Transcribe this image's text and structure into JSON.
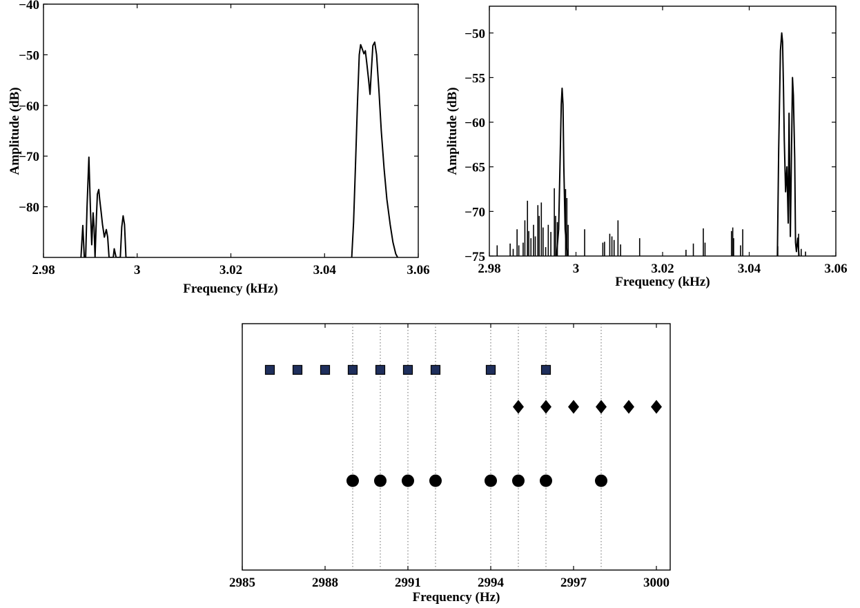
{
  "chart_data": [
    {
      "type": "line",
      "xlabel": "Frequency (kHz)",
      "ylabel": "Amplitude (dB)",
      "xlim": [
        2.98,
        3.06
      ],
      "ylim": [
        -90,
        -40
      ],
      "xticks": [
        2.98,
        3.0,
        3.02,
        3.04,
        3.06
      ],
      "xtick_labels": [
        "2.98",
        "3",
        "3.02",
        "3.04",
        "3.06"
      ],
      "yticks": [
        -40,
        -50,
        -60,
        -70,
        -80
      ],
      "ytick_labels": [
        "−40",
        "−50",
        "−60",
        "−70",
        "−80"
      ],
      "grid": false,
      "series": [
        {
          "x": [
            2.988,
            2.9884,
            2.9887,
            2.989,
            2.9893,
            2.9897,
            2.99,
            2.9903,
            2.9906,
            2.9908,
            2.991,
            2.9913,
            2.9915,
            2.9918,
            2.992,
            2.9923,
            2.9926,
            2.993,
            2.9934,
            2.9937,
            2.994,
            2.9943,
            2.9946,
            2.9949,
            2.9951,
            2.9955,
            2.9958,
            2.9961,
            2.9964,
            2.9967,
            2.997,
            2.9973,
            2.9976,
            2.9978,
            2.9981,
            2.9984,
            2.9987,
            2.999,
            2.9995
          ],
          "y": [
            -90,
            -83.7,
            -90,
            -90,
            -80,
            -70.2,
            -80,
            -87.5,
            -81.2,
            -84,
            -90,
            -82,
            -77.5,
            -76.6,
            -78.5,
            -81,
            -83.5,
            -86,
            -84.5,
            -86,
            -90,
            -90,
            -90,
            -90,
            -88.3,
            -90,
            -90,
            -90,
            -90,
            -84,
            -81.8,
            -83.5,
            -90,
            -90,
            -90,
            -90,
            -90,
            -90,
            -90
          ]
        },
        {
          "x": [
            3.0458,
            3.0462,
            3.0466,
            3.047,
            3.0474,
            3.0477,
            3.048,
            3.0484,
            3.0487,
            3.049,
            3.0494,
            3.0497,
            3.05,
            3.0503,
            3.0507,
            3.0511,
            3.0516,
            3.0521,
            3.0527,
            3.0533,
            3.054,
            3.0546,
            3.0552,
            3.0556
          ],
          "y": [
            -90,
            -83,
            -72,
            -60,
            -50,
            -48,
            -48.7,
            -49.8,
            -49.2,
            -51.5,
            -55,
            -57.8,
            -53,
            -48.2,
            -47.5,
            -50,
            -57,
            -65,
            -72.5,
            -78.5,
            -83.5,
            -87,
            -89.3,
            -90
          ]
        }
      ]
    },
    {
      "type": "line",
      "xlabel": "Frequency (kHz)",
      "ylabel": "Amplitude (dB)",
      "xlim": [
        2.98,
        3.06
      ],
      "ylim": [
        -75,
        -47
      ],
      "xticks": [
        2.98,
        3.0,
        3.02,
        3.04,
        3.06
      ],
      "xtick_labels": [
        "2.98",
        "3",
        "3.02",
        "3.04",
        "3.06"
      ],
      "yticks": [
        -50,
        -55,
        -60,
        -65,
        -70,
        -75
      ],
      "ytick_labels": [
        "−50",
        "−55",
        "−60",
        "−65",
        "−70",
        "−75"
      ],
      "grid": false,
      "floor": -75,
      "spikes": [
        [
          2.9818,
          -73.8
        ],
        [
          2.9848,
          -73.6
        ],
        [
          2.9855,
          -74.2
        ],
        [
          2.9864,
          -72.0
        ],
        [
          2.9868,
          -73.8
        ],
        [
          2.9878,
          -73.5
        ],
        [
          2.9882,
          -71.0
        ],
        [
          2.9888,
          -68.8
        ],
        [
          2.9891,
          -72.2
        ],
        [
          2.9896,
          -73.0
        ],
        [
          2.9902,
          -71.5
        ],
        [
          2.9906,
          -72.8
        ],
        [
          2.9912,
          -69.3
        ],
        [
          2.9915,
          -70.5
        ],
        [
          2.992,
          -69.0
        ],
        [
          2.9924,
          -71.8
        ],
        [
          2.993,
          -74.0
        ],
        [
          2.9936,
          -71.5
        ],
        [
          2.9942,
          -72.3
        ],
        [
          2.995,
          -67.4
        ],
        [
          2.9953,
          -70.5
        ],
        [
          2.9957,
          -71.2
        ],
        [
          2.9976,
          -67.5
        ],
        [
          2.9979,
          -68.5
        ],
        [
          2.9982,
          -71.5
        ],
        [
          3.002,
          -72.0
        ],
        [
          3.0062,
          -73.5
        ],
        [
          3.0066,
          -73.4
        ],
        [
          3.0078,
          -72.5
        ],
        [
          3.0083,
          -72.8
        ],
        [
          3.0088,
          -73.2
        ],
        [
          3.0097,
          -71.0
        ],
        [
          3.0103,
          -73.7
        ],
        [
          3.0147,
          -73.0
        ],
        [
          3.0254,
          -74.3
        ],
        [
          3.0271,
          -73.6
        ],
        [
          3.0294,
          -71.9
        ],
        [
          3.0298,
          -73.5
        ],
        [
          3.0359,
          -72.2
        ],
        [
          3.0362,
          -71.8
        ],
        [
          3.0364,
          -73.0
        ],
        [
          3.038,
          -73.8
        ],
        [
          3.0385,
          -72.0
        ],
        [
          3.0466,
          -73.9
        ],
        [
          3.0514,
          -72.5
        ],
        [
          3.052,
          -74.2
        ],
        [
          3.053,
          -74.5
        ]
      ],
      "series": [
        {
          "x": [
            2.9955,
            2.996,
            2.9963,
            2.9966,
            2.9968,
            2.997,
            2.9972,
            2.9975,
            2.998
          ],
          "y": [
            -75,
            -72,
            -65,
            -58,
            -56.2,
            -58,
            -65,
            -72,
            -75
          ]
        },
        {
          "x": [
            3.0465,
            3.0468,
            3.0472,
            3.0475,
            3.0477,
            3.0479,
            3.0481,
            3.0484,
            3.0487,
            3.049,
            3.0492,
            3.0495,
            3.0498,
            3.05,
            3.0502,
            3.0505,
            3.0507,
            3.0509,
            3.0512,
            3.0515
          ],
          "y": [
            -75,
            -63,
            -52,
            -50.0,
            -51.0,
            -56.0,
            -62.0,
            -67.8,
            -65.0,
            -71.3,
            -59.0,
            -72.8,
            -62.0,
            -55.0,
            -57.0,
            -64.0,
            -73.5,
            -74.5,
            -73.0,
            -75
          ]
        }
      ]
    },
    {
      "type": "scatter",
      "xlabel": "Frequency (Hz)",
      "xlim": [
        2985,
        3000.5
      ],
      "ylim": [
        0,
        4
      ],
      "xticks": [
        2985,
        2988,
        2991,
        2994,
        2997,
        3000
      ],
      "xtick_labels": [
        "2985",
        "2988",
        "2991",
        "2994",
        "2997",
        "3000"
      ],
      "vlines": [
        2989,
        2990,
        2991,
        2992,
        2994,
        2995,
        2996,
        2998
      ],
      "series": [
        {
          "marker": "square",
          "color": "#1f2f5c",
          "y": 3.25,
          "x": [
            2986,
            2987,
            2988,
            2989,
            2990,
            2991,
            2992,
            2994,
            2996
          ]
        },
        {
          "marker": "diamond",
          "color": "#000000",
          "y": 2.65,
          "x": [
            2995,
            2996,
            2997,
            2998,
            2999,
            3000
          ]
        },
        {
          "marker": "circle",
          "color": "#000000",
          "y": 1.45,
          "x": [
            2989,
            2990,
            2991,
            2992,
            2994,
            2995,
            2996,
            2998
          ]
        }
      ]
    }
  ]
}
